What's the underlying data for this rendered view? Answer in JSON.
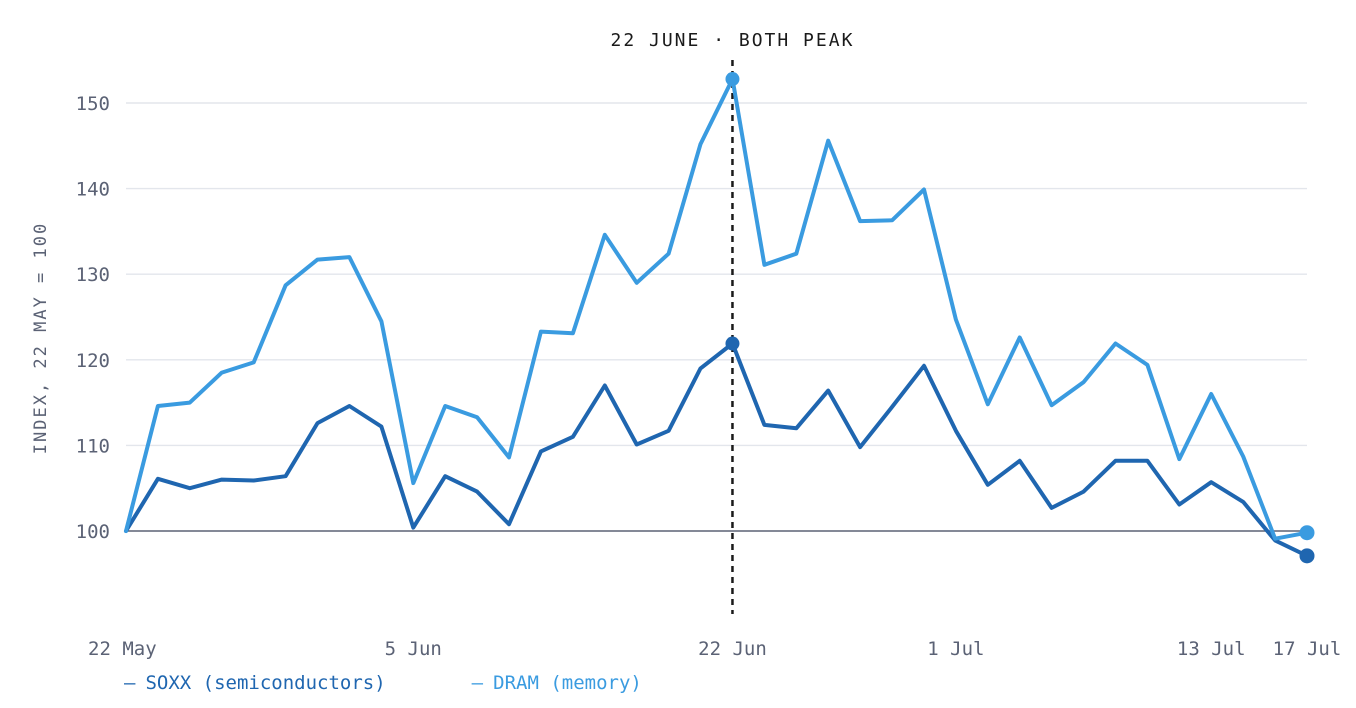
{
  "chart_data": {
    "type": "line",
    "ylabel": "INDEX, 22 MAY = 100",
    "xlabel": "",
    "ylim": [
      90,
      155
    ],
    "y_ticks": [
      100,
      110,
      120,
      130,
      140,
      150
    ],
    "baseline": 100,
    "x_tick_labels": [
      "22 May",
      "5 Jun",
      "22 Jun",
      "1 Jul",
      "13 Jul",
      "17 Jul"
    ],
    "x_tick_indices": [
      0,
      9,
      19,
      26,
      34,
      37
    ],
    "annotation": {
      "label": "22 JUNE · BOTH PEAK",
      "index": 19
    },
    "grid": true,
    "legend_position": "bottom-left",
    "colors": {
      "SOXX": "#1f66b0",
      "DRAM": "#3a9be0",
      "axis": "#5b6275",
      "grid": "#e3e6ec"
    },
    "series": [
      {
        "name": "SOXX (semiconductors)",
        "key": "SOXX",
        "values": [
          100,
          106.1,
          105.0,
          106.0,
          105.9,
          106.4,
          112.6,
          114.6,
          112.2,
          100.4,
          106.4,
          104.6,
          100.8,
          109.3,
          111.0,
          117.0,
          110.1,
          111.7,
          119.0,
          121.9,
          112.4,
          112.0,
          116.4,
          109.8,
          114.5,
          119.3,
          111.7,
          105.4,
          108.2,
          102.7,
          104.6,
          108.2,
          108.2,
          103.1,
          105.7,
          103.4,
          98.9,
          97.1
        ]
      },
      {
        "name": "DRAM (memory)",
        "key": "DRAM",
        "values": [
          100,
          114.6,
          115.0,
          118.5,
          119.7,
          128.7,
          131.7,
          132.0,
          124.5,
          105.6,
          114.6,
          113.3,
          108.6,
          123.3,
          123.1,
          134.6,
          129.0,
          132.4,
          145.2,
          152.8,
          131.1,
          132.4,
          145.6,
          136.2,
          136.3,
          139.9,
          124.7,
          114.8,
          122.6,
          114.7,
          117.4,
          121.9,
          119.4,
          108.4,
          116.0,
          108.7,
          99.1,
          99.8
        ]
      }
    ]
  }
}
